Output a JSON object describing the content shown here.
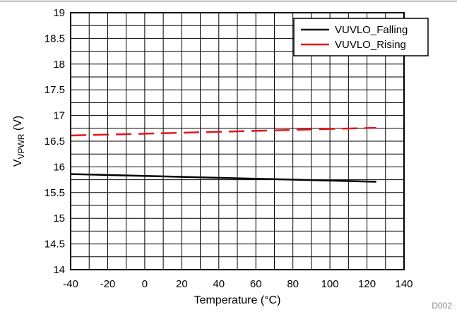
{
  "chart_data": {
    "type": "line",
    "xlabel": "Temperature (°C)",
    "ylabel": {
      "main": "V",
      "sub": "VPWR",
      "unit": " (V)"
    },
    "xlim": [
      -40,
      140
    ],
    "ylim": [
      14,
      19
    ],
    "x_ticks": [
      -40,
      -20,
      0,
      20,
      40,
      60,
      80,
      100,
      120,
      140
    ],
    "y_ticks": [
      14,
      14.5,
      15,
      15.5,
      16,
      16.5,
      17,
      17.5,
      18,
      18.5,
      19
    ],
    "grid": {
      "x_minor_step": 10,
      "y_minor_step": 0.25,
      "on": true
    },
    "legend": {
      "position": "top-right"
    },
    "series": [
      {
        "name": "VUVLO_Falling",
        "color": "#000000",
        "dash": "solid",
        "x": [
          -40,
          125
        ],
        "y": [
          15.86,
          15.71
        ]
      },
      {
        "name": "VUVLO_Rising",
        "color": "#e8141b",
        "dash": "dashed",
        "x": [
          -40,
          125
        ],
        "y": [
          16.61,
          16.76
        ]
      }
    ],
    "id_label": "D002"
  }
}
